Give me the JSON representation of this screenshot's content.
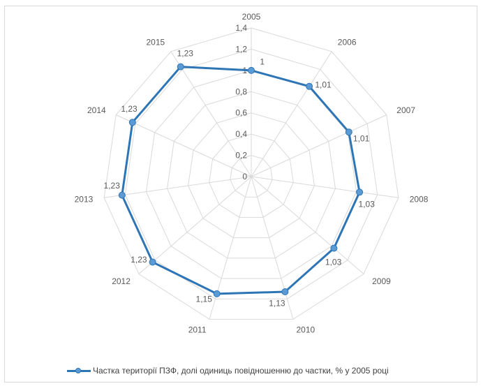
{
  "chart_data": {
    "type": "radar",
    "categories": [
      "2005",
      "2006",
      "2007",
      "2008",
      "2009",
      "2010",
      "2011",
      "2012",
      "2013",
      "2014",
      "2015"
    ],
    "series": [
      {
        "name": "Частка території ПЗФ, долі одиниць повідношенню до частки, % у 2005 році",
        "values": [
          1,
          1.01,
          1.01,
          1.03,
          1.03,
          1.13,
          1.15,
          1.23,
          1.23,
          1.23,
          1.23
        ],
        "data_labels": [
          "1",
          "1,01",
          "1,01",
          "1,03",
          "1,03",
          "1,13",
          "1,15",
          "1,23",
          "1,23",
          "1,23",
          "1,23"
        ],
        "color": "#2e75b6",
        "marker_color": "#5b9bd5"
      }
    ],
    "axis": {
      "min": 0,
      "max": 1.4,
      "step": 0.2,
      "tick_labels": [
        "0",
        "0,2",
        "0,4",
        "0,6",
        "0,8",
        "1",
        "1,2",
        "1,4"
      ]
    },
    "grid": true,
    "grid_color": "#d9d9d9",
    "legend_position": "bottom"
  }
}
